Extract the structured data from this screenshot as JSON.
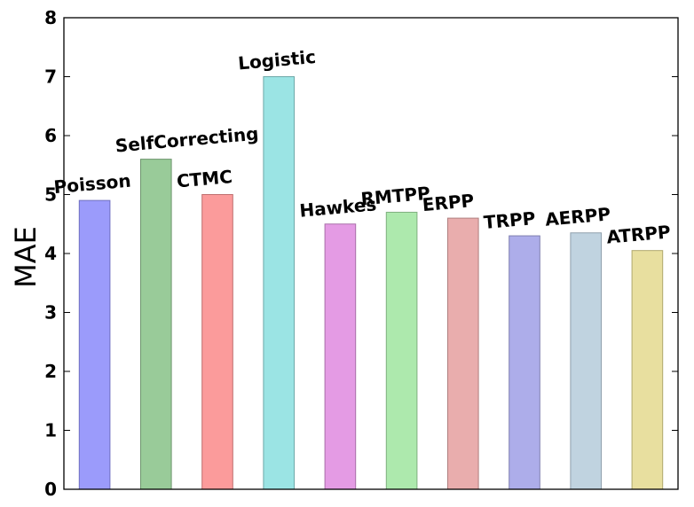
{
  "chart_data": {
    "type": "bar",
    "title": "",
    "xlabel": "",
    "ylabel": "MAE",
    "ylim": [
      0,
      8
    ],
    "yticks": [
      "0",
      "1",
      "2",
      "3",
      "4",
      "5",
      "6",
      "7",
      "8"
    ],
    "grid": false,
    "categories": [
      "Poisson",
      "SelfCorrecting",
      "CTMC",
      "Logistic",
      "Hawkes",
      "RMTPP",
      "ERPP",
      "TRPP",
      "AERPP",
      "ATRPP"
    ],
    "values": [
      4.9,
      5.6,
      5.0,
      7.0,
      4.5,
      4.7,
      4.6,
      4.3,
      4.35,
      4.05
    ],
    "colors": [
      "#9b9bfb",
      "#99cb99",
      "#fb9b9b",
      "#9be4e4",
      "#e49be4",
      "#ade9ad",
      "#e9adad",
      "#adadea",
      "#c0d3e0",
      "#e8df9f"
    ],
    "edge_colors": [
      "#6e6ec0",
      "#6e956e",
      "#c06e6e",
      "#6ea9a9",
      "#a96ea9",
      "#7fb07f",
      "#b07f7f",
      "#7f7fb0",
      "#8fa0ad",
      "#b0a86e"
    ]
  }
}
